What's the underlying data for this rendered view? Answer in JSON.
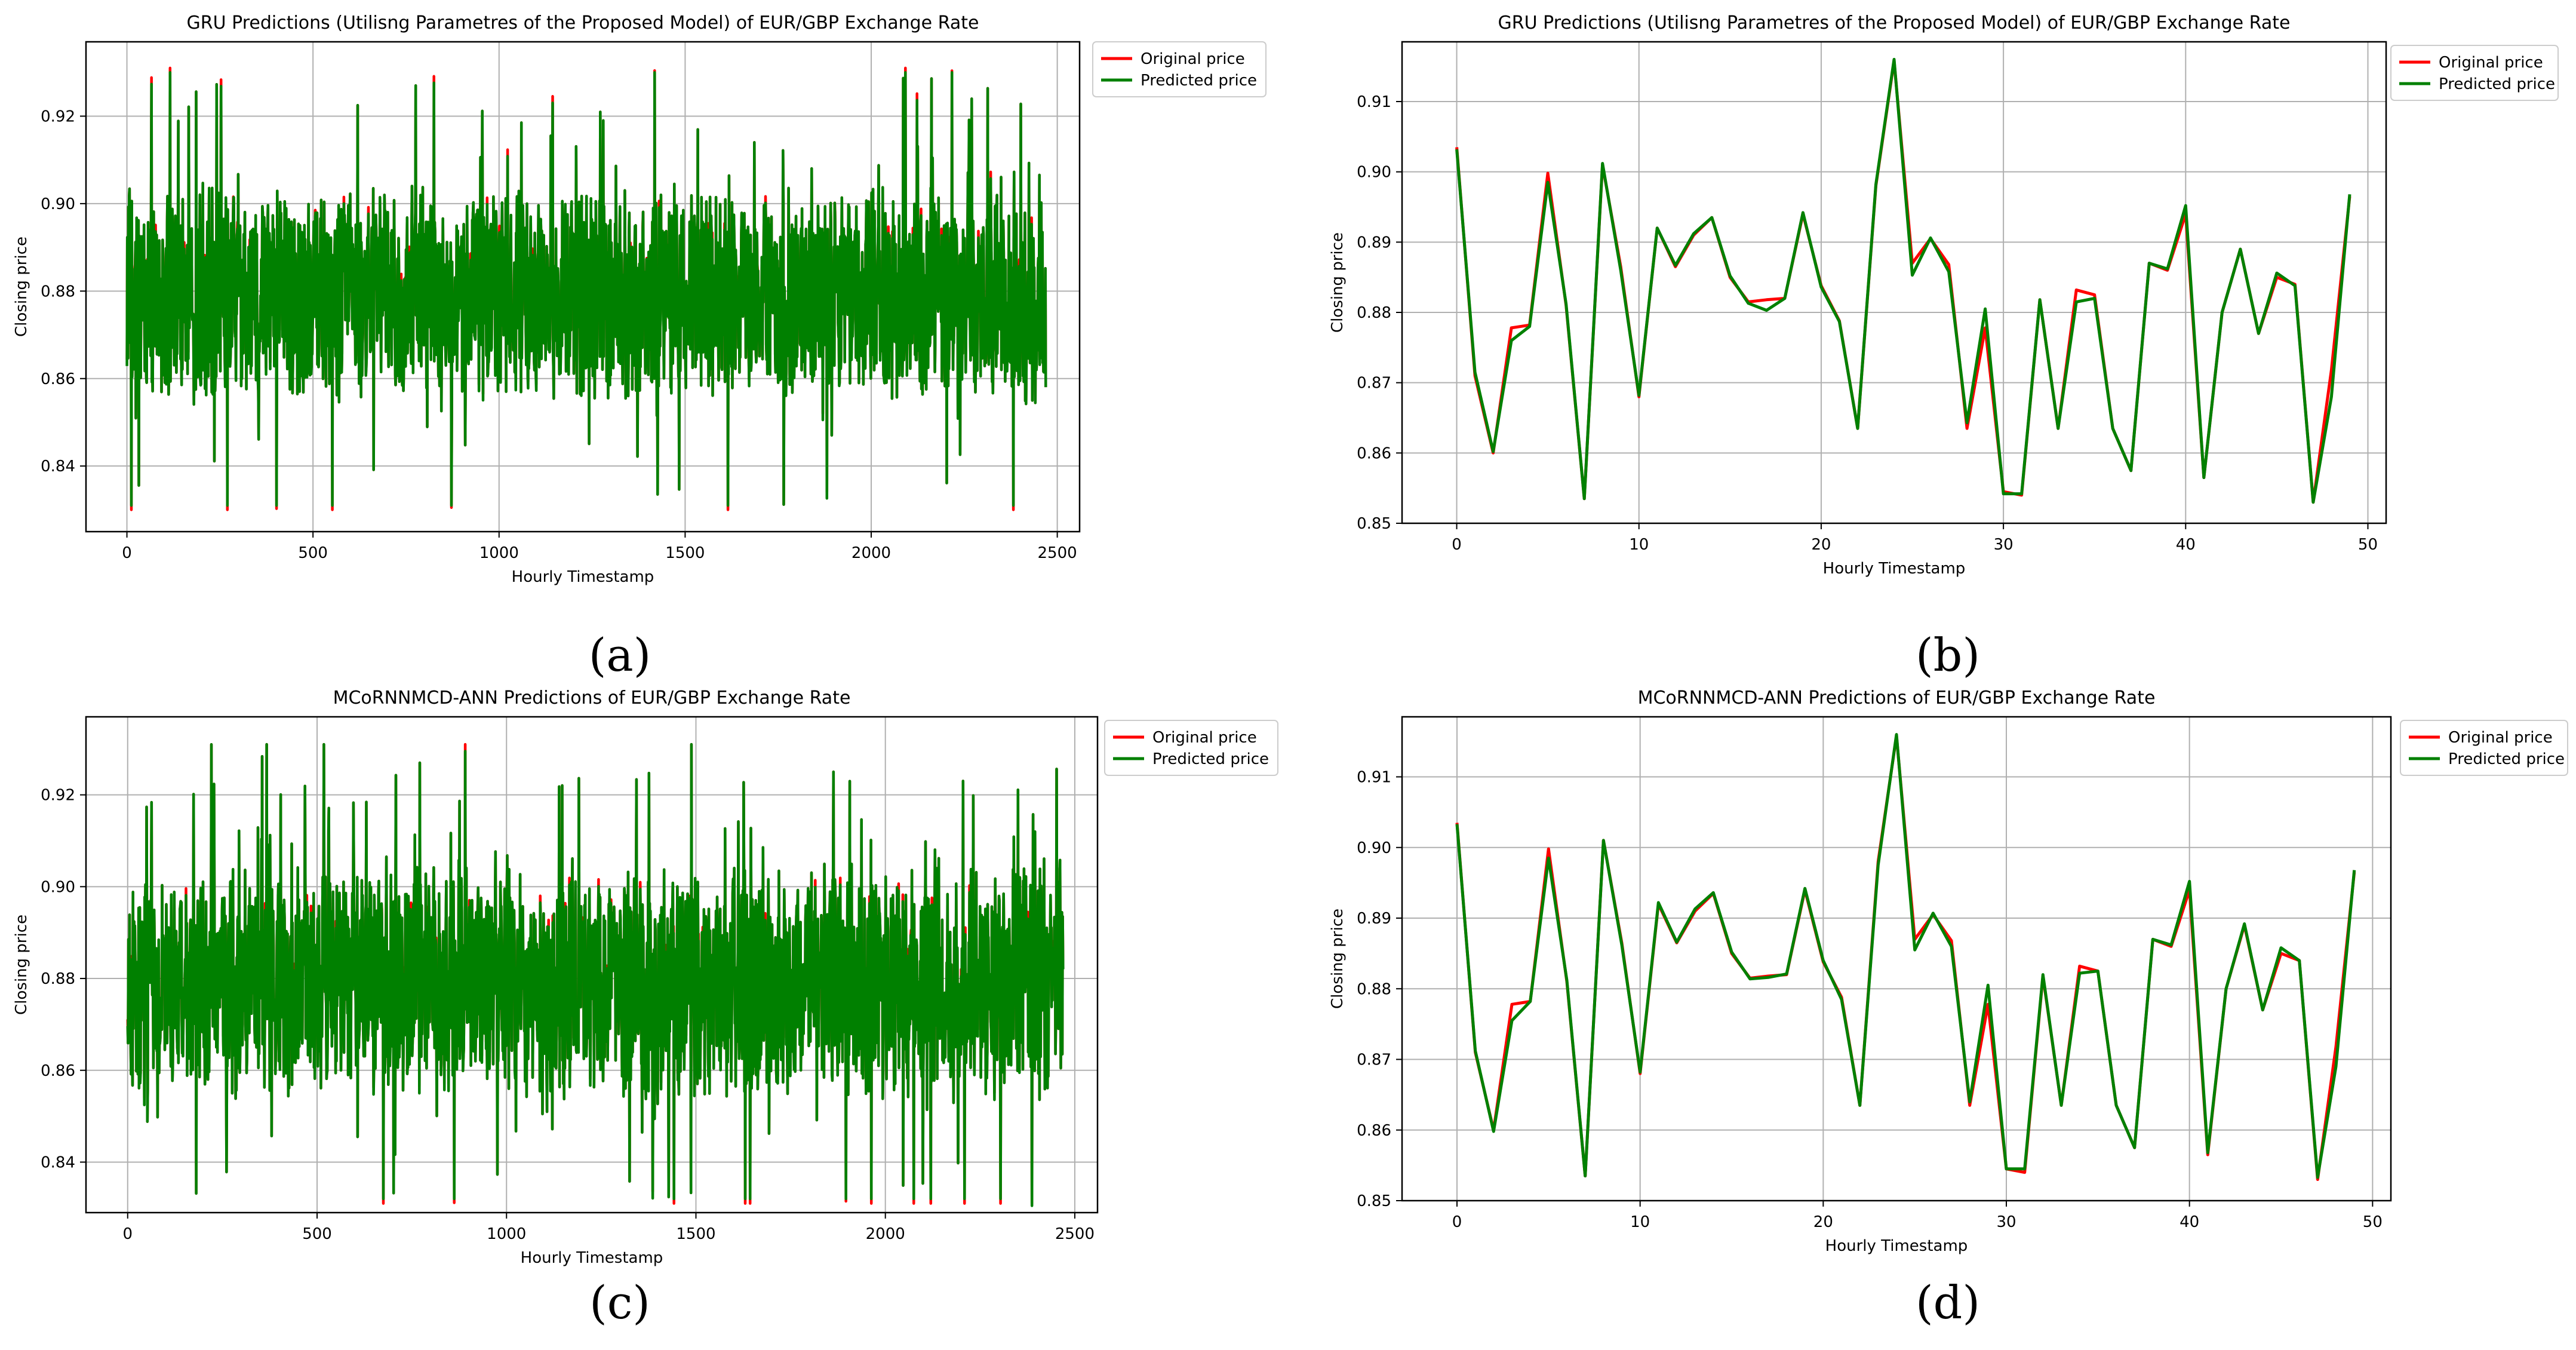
{
  "figure": {
    "captions": [
      "(a)",
      "(b)",
      "(c)",
      "(d)"
    ]
  },
  "colors": {
    "original": "#ff0000",
    "predicted": "#008000",
    "grid": "#b0b0b0"
  },
  "chart_data": [
    {
      "id": "a",
      "type": "line",
      "title": "GRU Predictions (Utilisng Parametres of the Proposed Model) of EUR/GBP Exchange Rate",
      "xlabel": "Hourly Timestamp",
      "ylabel": "Closing price",
      "xlim": [
        -110,
        2560
      ],
      "ylim": [
        0.825,
        0.937
      ],
      "xticks": [
        0,
        500,
        1000,
        1500,
        2000,
        2500
      ],
      "yticks": [
        0.84,
        0.86,
        0.88,
        0.9,
        0.92
      ],
      "ytick_labels": [
        "0.84",
        "0.86",
        "0.88",
        "0.90",
        "0.92"
      ],
      "grid": true,
      "legend_position": "outside-top-right",
      "series": [
        {
          "name": "Original price",
          "color": "#ff0000",
          "summary": {
            "n": 2470,
            "mean": 0.879,
            "min": 0.83,
            "max": 0.931
          }
        },
        {
          "name": "Predicted price",
          "color": "#008000",
          "summary": {
            "n": 2470,
            "mean": 0.879,
            "min": 0.831,
            "max": 0.93
          }
        }
      ]
    },
    {
      "id": "b",
      "type": "line",
      "title": "GRU Predictions (Utilisng Parametres of the Proposed Model) of EUR/GBP Exchange Rate",
      "xlabel": "Hourly Timestamp",
      "ylabel": "Closing price",
      "xlim": [
        -3,
        51
      ],
      "ylim": [
        0.85,
        0.9185
      ],
      "xticks": [
        0,
        10,
        20,
        30,
        40,
        50
      ],
      "yticks": [
        0.85,
        0.86,
        0.87,
        0.88,
        0.89,
        0.9,
        0.91
      ],
      "ytick_labels": [
        "0.85",
        "0.86",
        "0.87",
        "0.88",
        "0.89",
        "0.90",
        "0.91"
      ],
      "grid": true,
      "legend_position": "outside-top-right",
      "x": [
        0,
        1,
        2,
        3,
        4,
        5,
        6,
        7,
        8,
        9,
        10,
        11,
        12,
        13,
        14,
        15,
        16,
        17,
        18,
        19,
        20,
        21,
        22,
        23,
        24,
        25,
        26,
        27,
        28,
        29,
        30,
        31,
        32,
        33,
        34,
        35,
        36,
        37,
        38,
        39,
        40,
        41,
        42,
        43,
        44,
        45,
        46,
        47,
        48,
        49
      ],
      "series": [
        {
          "name": "Original price",
          "color": "#ff0000",
          "values": [
            0.9035,
            0.871,
            0.86,
            0.8778,
            0.8782,
            0.8998,
            0.881,
            0.8535,
            0.901,
            0.8865,
            0.868,
            0.892,
            0.8865,
            0.891,
            0.8935,
            0.885,
            0.8815,
            0.8818,
            0.882,
            0.894,
            0.8838,
            0.8788,
            0.8635,
            0.898,
            0.9158,
            0.887,
            0.8905,
            0.8868,
            0.8635,
            0.8778,
            0.8545,
            0.854,
            0.8818,
            0.8635,
            0.8832,
            0.8825,
            0.8635,
            0.8575,
            0.887,
            0.886,
            0.894,
            0.8565,
            0.88,
            0.889,
            0.877,
            0.885,
            0.884,
            0.853,
            0.8718,
            0.8965
          ]
        },
        {
          "name": "Predicted price",
          "color": "#008000",
          "values": [
            0.9032,
            0.8715,
            0.8602,
            0.876,
            0.878,
            0.8985,
            0.8812,
            0.8535,
            0.9012,
            0.886,
            0.8682,
            0.892,
            0.8867,
            0.8912,
            0.8935,
            0.8852,
            0.8813,
            0.8803,
            0.882,
            0.8942,
            0.8836,
            0.8787,
            0.8635,
            0.8982,
            0.916,
            0.8853,
            0.8906,
            0.8858,
            0.8643,
            0.8805,
            0.8542,
            0.8542,
            0.8818,
            0.8635,
            0.8815,
            0.882,
            0.8635,
            0.8575,
            0.887,
            0.8862,
            0.8952,
            0.8565,
            0.88,
            0.889,
            0.877,
            0.8856,
            0.8838,
            0.853,
            0.868,
            0.8968
          ]
        }
      ]
    },
    {
      "id": "c",
      "type": "line",
      "title": "MCoRNNMCD-ANN Predictions of EUR/GBP Exchange Rate",
      "xlabel": "Hourly Timestamp",
      "ylabel": "Closing price",
      "xlim": [
        -110,
        2560
      ],
      "ylim": [
        0.829,
        0.937
      ],
      "xticks": [
        0,
        500,
        1000,
        1500,
        2000,
        2500
      ],
      "yticks": [
        0.84,
        0.86,
        0.88,
        0.9,
        0.92
      ],
      "ytick_labels": [
        "0.84",
        "0.86",
        "0.88",
        "0.90",
        "0.92"
      ],
      "grid": true,
      "legend_position": "outside-top-right",
      "series": [
        {
          "name": "Original price",
          "color": "#ff0000",
          "summary": {
            "n": 2470,
            "mean": 0.879,
            "min": 0.831,
            "max": 0.931
          }
        },
        {
          "name": "Predicted price",
          "color": "#008000",
          "summary": {
            "n": 2470,
            "mean": 0.879,
            "min": 0.832,
            "max": 0.931
          }
        }
      ]
    },
    {
      "id": "d",
      "type": "line",
      "title": "MCoRNNMCD-ANN Predictions of EUR/GBP Exchange Rate",
      "xlabel": "Hourly Timestamp",
      "ylabel": "Closing price",
      "xlim": [
        -3,
        51
      ],
      "ylim": [
        0.85,
        0.9185
      ],
      "xticks": [
        0,
        10,
        20,
        30,
        40,
        50
      ],
      "yticks": [
        0.85,
        0.86,
        0.87,
        0.88,
        0.89,
        0.9,
        0.91
      ],
      "ytick_labels": [
        "0.85",
        "0.86",
        "0.87",
        "0.88",
        "0.89",
        "0.90",
        "0.91"
      ],
      "grid": true,
      "legend_position": "outside-top-right",
      "x": [
        0,
        1,
        2,
        3,
        4,
        5,
        6,
        7,
        8,
        9,
        10,
        11,
        12,
        13,
        14,
        15,
        16,
        17,
        18,
        19,
        20,
        21,
        22,
        23,
        24,
        25,
        26,
        27,
        28,
        29,
        30,
        31,
        32,
        33,
        34,
        35,
        36,
        37,
        38,
        39,
        40,
        41,
        42,
        43,
        44,
        45,
        46,
        47,
        48,
        49
      ],
      "series": [
        {
          "name": "Original price",
          "color": "#ff0000",
          "values": [
            0.9035,
            0.871,
            0.86,
            0.8778,
            0.8782,
            0.8998,
            0.881,
            0.8535,
            0.901,
            0.8865,
            0.868,
            0.892,
            0.8865,
            0.891,
            0.8935,
            0.885,
            0.8815,
            0.8818,
            0.882,
            0.894,
            0.8838,
            0.8788,
            0.8635,
            0.898,
            0.9158,
            0.887,
            0.8905,
            0.8868,
            0.8635,
            0.8778,
            0.8545,
            0.854,
            0.8818,
            0.8635,
            0.8832,
            0.8825,
            0.8635,
            0.8575,
            0.887,
            0.886,
            0.894,
            0.8565,
            0.88,
            0.889,
            0.877,
            0.885,
            0.884,
            0.853,
            0.8718,
            0.8965
          ]
        },
        {
          "name": "Predicted price",
          "color": "#008000",
          "values": [
            0.9033,
            0.8712,
            0.8598,
            0.8755,
            0.8782,
            0.8985,
            0.8812,
            0.8535,
            0.901,
            0.8862,
            0.8682,
            0.8922,
            0.8866,
            0.8913,
            0.8936,
            0.8852,
            0.8814,
            0.8816,
            0.8821,
            0.8942,
            0.884,
            0.8785,
            0.8635,
            0.8975,
            0.916,
            0.8855,
            0.8907,
            0.886,
            0.864,
            0.8805,
            0.8545,
            0.8545,
            0.882,
            0.8635,
            0.8822,
            0.8825,
            0.8635,
            0.8575,
            0.887,
            0.8862,
            0.8952,
            0.8568,
            0.88,
            0.8892,
            0.877,
            0.8858,
            0.884,
            0.8533,
            0.869,
            0.8968
          ]
        }
      ]
    }
  ]
}
